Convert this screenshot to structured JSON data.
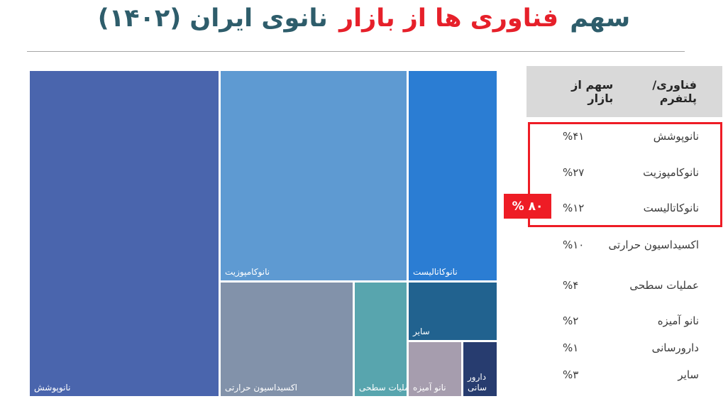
{
  "title": {
    "segment_start": "سهم",
    "segment_highlight": "فناوری ها از بازار",
    "segment_end": "نانوی ایران (۱۴۰۲)",
    "color_teal": "#2e5d6b",
    "color_red": "#e6202a"
  },
  "table": {
    "header": {
      "technology": "فناوری/ پلتفرم",
      "share": "سهم از بازار"
    },
    "highlight": {
      "badge": "% ۸۰",
      "color": "#ee1c25"
    }
  },
  "chart_data": {
    "type": "treemap",
    "title": "سهم فناوری ها از بازار نانوی ایران (۱۴۰۲)",
    "unit": "percent",
    "items": [
      {
        "label": "نانوپوشش",
        "value": 41,
        "value_fa": "%۴۱",
        "color": "#4a65ad"
      },
      {
        "label": "نانوکامپوزیت",
        "value": 27,
        "value_fa": "%۲۷",
        "color": "#5e9ad2"
      },
      {
        "label": "نانوکاتالیست",
        "value": 12,
        "value_fa": "%۱۲",
        "color": "#2b7dd3"
      },
      {
        "label": "اکسیداسیون حرارتی",
        "value": 10,
        "value_fa": "%۱۰",
        "color": "#8292aa"
      },
      {
        "label": "عملیات سطحی",
        "value": 4,
        "value_fa": "%۴",
        "color": "#58a5ae"
      },
      {
        "label": "نانو آمیزه",
        "value": 2,
        "value_fa": "%۲",
        "color": "#a69dae"
      },
      {
        "label": "دارورسانی",
        "treemap_label": "دارور سانی",
        "value": 1,
        "value_fa": "%۱",
        "color": "#273c6f"
      },
      {
        "label": "سایر",
        "value": 3,
        "value_fa": "%۳",
        "color": "#21628f"
      }
    ],
    "annotation": {
      "text": "% ۸۰"
    }
  }
}
